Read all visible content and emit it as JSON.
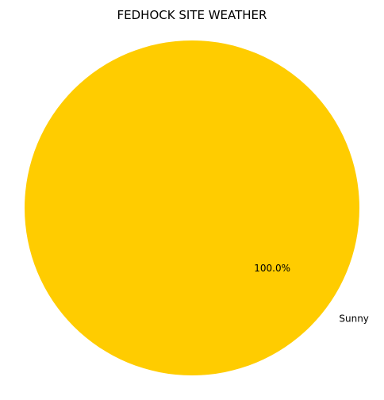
{
  "chart_data": {
    "type": "pie",
    "title": "FEDHOCK SITE WEATHER",
    "categories": [
      "Sunny"
    ],
    "values": [
      100
    ],
    "percent_labels": [
      "100.0%"
    ],
    "colors": [
      "#FFCC00"
    ]
  }
}
